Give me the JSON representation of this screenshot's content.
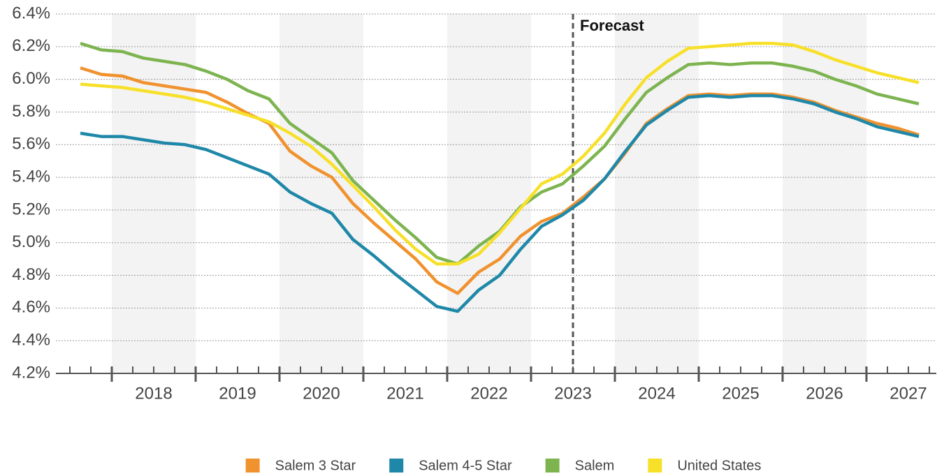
{
  "chart_data": {
    "type": "line",
    "x": [
      2017.625,
      2017.875,
      2018.125,
      2018.375,
      2018.625,
      2018.875,
      2019.125,
      2019.375,
      2019.625,
      2019.875,
      2020.125,
      2020.375,
      2020.625,
      2020.875,
      2021.125,
      2021.375,
      2021.625,
      2021.875,
      2022.125,
      2022.375,
      2022.625,
      2022.875,
      2023.125,
      2023.375,
      2023.625,
      2023.875,
      2024.125,
      2024.375,
      2024.625,
      2024.875,
      2025.125,
      2025.375,
      2025.625,
      2025.875,
      2026.125,
      2026.375,
      2026.625,
      2026.875,
      2027.125,
      2027.375,
      2027.625
    ],
    "series": [
      {
        "name": "Salem 3 Star",
        "color": "#f0922e",
        "values": [
          6.07,
          6.03,
          6.02,
          5.98,
          5.96,
          5.94,
          5.92,
          5.86,
          5.79,
          5.73,
          5.56,
          5.47,
          5.4,
          5.24,
          5.12,
          5.01,
          4.9,
          4.76,
          4.69,
          4.82,
          4.9,
          5.04,
          5.13,
          5.18,
          5.28,
          5.39,
          5.55,
          5.73,
          5.82,
          5.9,
          5.91,
          5.9,
          5.91,
          5.91,
          5.89,
          5.86,
          5.81,
          5.77,
          5.73,
          5.7,
          5.66
        ]
      },
      {
        "name": "Salem 4-5 Star",
        "color": "#1f88a8",
        "values": [
          5.67,
          5.65,
          5.65,
          5.63,
          5.61,
          5.6,
          5.57,
          5.52,
          5.47,
          5.42,
          5.31,
          5.24,
          5.18,
          5.02,
          4.92,
          4.81,
          4.71,
          4.61,
          4.58,
          4.71,
          4.8,
          4.96,
          5.1,
          5.17,
          5.26,
          5.39,
          5.56,
          5.72,
          5.81,
          5.89,
          5.9,
          5.89,
          5.9,
          5.9,
          5.88,
          5.85,
          5.8,
          5.76,
          5.71,
          5.68,
          5.65
        ]
      },
      {
        "name": "Salem",
        "color": "#7db450",
        "values": [
          6.22,
          6.18,
          6.17,
          6.13,
          6.11,
          6.09,
          6.05,
          6.0,
          5.93,
          5.88,
          5.73,
          5.64,
          5.55,
          5.38,
          5.26,
          5.14,
          5.03,
          4.91,
          4.87,
          4.98,
          5.07,
          5.22,
          5.31,
          5.36,
          5.47,
          5.59,
          5.76,
          5.92,
          6.01,
          6.09,
          6.1,
          6.09,
          6.1,
          6.1,
          6.08,
          6.05,
          6.0,
          5.96,
          5.91,
          5.88,
          5.85
        ]
      },
      {
        "name": "United States",
        "color": "#f7e02a",
        "values": [
          5.97,
          5.96,
          5.95,
          5.93,
          5.91,
          5.89,
          5.86,
          5.82,
          5.78,
          5.74,
          5.67,
          5.59,
          5.48,
          5.35,
          5.22,
          5.08,
          4.96,
          4.87,
          4.87,
          4.93,
          5.06,
          5.21,
          5.36,
          5.42,
          5.53,
          5.67,
          5.85,
          6.01,
          6.11,
          6.19,
          6.2,
          6.21,
          6.22,
          6.22,
          6.21,
          6.17,
          6.12,
          6.08,
          6.04,
          6.01,
          5.98
        ]
      }
    ],
    "xlim": [
      2017.3333,
      2027.8333
    ],
    "xticks": [
      2018,
      2019,
      2020,
      2021,
      2022,
      2023,
      2024,
      2025,
      2026,
      2027
    ],
    "ylim": [
      4.2,
      6.4
    ],
    "yticks": [
      {
        "value": 4.2,
        "label": "4.2%"
      },
      {
        "value": 4.4,
        "label": "4.4%"
      },
      {
        "value": 4.6,
        "label": "4.6%"
      },
      {
        "value": 4.8,
        "label": "4.8%"
      },
      {
        "value": 5.0,
        "label": "5.0%"
      },
      {
        "value": 5.2,
        "label": "5.2%"
      },
      {
        "value": 5.4,
        "label": "5.4%"
      },
      {
        "value": 5.6,
        "label": "5.6%"
      },
      {
        "value": 5.8,
        "label": "5.8%"
      },
      {
        "value": 6.0,
        "label": "6.0%"
      },
      {
        "value": 6.2,
        "label": "6.2%"
      },
      {
        "value": 6.4,
        "label": "6.4%"
      }
    ],
    "grid": true,
    "shaded_years": [
      2018,
      2020,
      2022,
      2024,
      2026
    ],
    "forecast_x": 2023.5,
    "forecast_label": "Forecast",
    "legend": "bottom"
  }
}
